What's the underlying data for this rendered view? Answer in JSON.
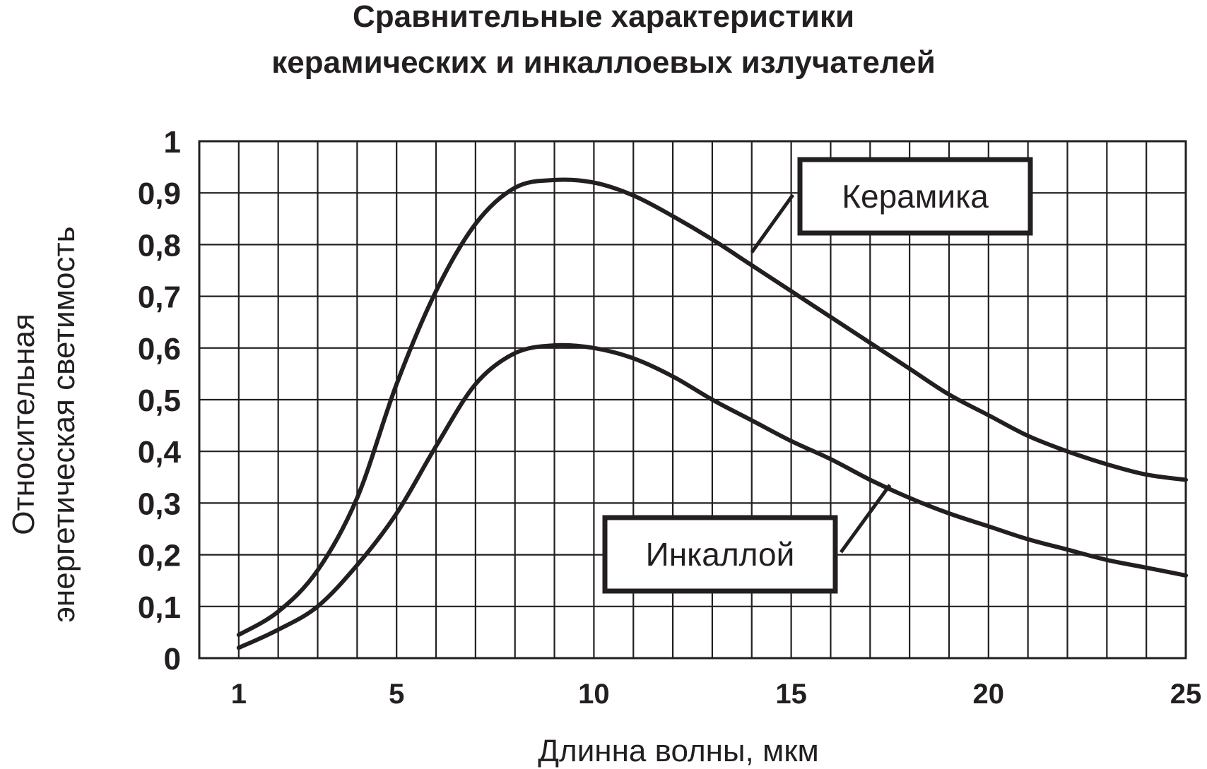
{
  "chart_data": {
    "type": "line",
    "title_lines": [
      "Сравнительные характеристики",
      "керамических и инкаллоевых излучателей"
    ],
    "xlabel": "Длинна волны, мкм",
    "ylabel_lines": [
      "Относительная",
      "энергетическая светимость"
    ],
    "x_ticks": [
      1,
      5,
      10,
      15,
      20,
      25
    ],
    "x_tick_labels": [
      "1",
      "5",
      "10",
      "15",
      "20",
      "25"
    ],
    "y_ticks": [
      0,
      0.1,
      0.2,
      0.3,
      0.4,
      0.5,
      0.6,
      0.7,
      0.8,
      0.9,
      1
    ],
    "y_tick_labels": [
      "0",
      "0,1",
      "0,2",
      "0,3",
      "0,4",
      "0,5",
      "0,6",
      "0,7",
      "0,8",
      "0,9",
      "1"
    ],
    "xlim": [
      0,
      25
    ],
    "ylim": [
      0,
      1
    ],
    "grid": true,
    "line_color": "#231f20",
    "series": [
      {
        "name": "Керамика",
        "x": [
          1,
          2,
          3,
          4,
          5,
          6,
          7,
          8,
          9,
          10,
          11,
          12,
          13,
          14,
          15,
          16,
          17,
          18,
          19,
          20,
          21,
          22,
          23,
          24,
          25
        ],
        "y": [
          0.045,
          0.09,
          0.17,
          0.31,
          0.53,
          0.71,
          0.84,
          0.91,
          0.925,
          0.92,
          0.895,
          0.855,
          0.81,
          0.76,
          0.71,
          0.66,
          0.61,
          0.56,
          0.51,
          0.47,
          0.43,
          0.4,
          0.375,
          0.355,
          0.345
        ],
        "label_box": {
          "text": "Керамика",
          "anchor_x": 14,
          "anchor_y": 0.785
        }
      },
      {
        "name": "Инкаллой",
        "x": [
          1,
          2,
          3,
          4,
          5,
          6,
          7,
          8,
          9,
          10,
          11,
          12,
          13,
          14,
          15,
          16,
          17,
          18,
          19,
          20,
          21,
          22,
          23,
          24,
          25
        ],
        "y": [
          0.02,
          0.055,
          0.1,
          0.18,
          0.28,
          0.41,
          0.53,
          0.59,
          0.605,
          0.6,
          0.58,
          0.545,
          0.5,
          0.46,
          0.42,
          0.385,
          0.345,
          0.31,
          0.28,
          0.255,
          0.23,
          0.21,
          0.19,
          0.175,
          0.16
        ],
        "label_box": {
          "text": "Инкаллой",
          "anchor_x": 17.5,
          "anchor_y": 0.335
        }
      }
    ]
  }
}
